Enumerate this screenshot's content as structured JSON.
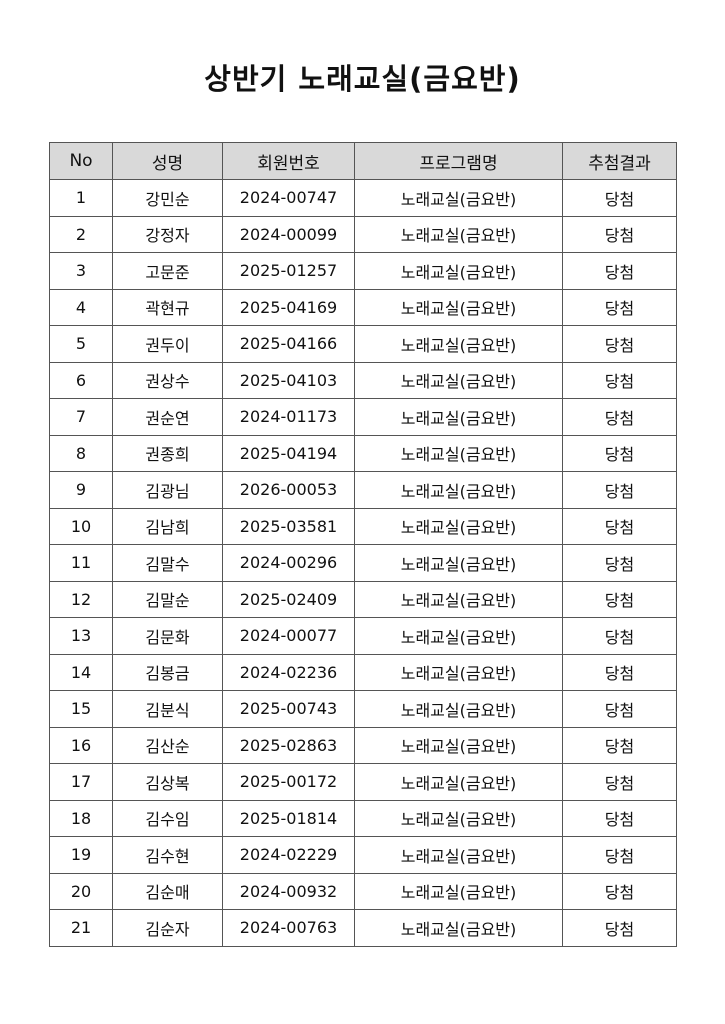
{
  "title": "상반기 노래교실(금요반)",
  "table": {
    "headers": [
      "No",
      "성명",
      "회원번호",
      "프로그램명",
      "추첨결과"
    ],
    "rows": [
      [
        "1",
        "강민순",
        "2024-00747",
        "노래교실(금요반)",
        "당첨"
      ],
      [
        "2",
        "강정자",
        "2024-00099",
        "노래교실(금요반)",
        "당첨"
      ],
      [
        "3",
        "고문준",
        "2025-01257",
        "노래교실(금요반)",
        "당첨"
      ],
      [
        "4",
        "곽현규",
        "2025-04169",
        "노래교실(금요반)",
        "당첨"
      ],
      [
        "5",
        "권두이",
        "2025-04166",
        "노래교실(금요반)",
        "당첨"
      ],
      [
        "6",
        "권상수",
        "2025-04103",
        "노래교실(금요반)",
        "당첨"
      ],
      [
        "7",
        "권순연",
        "2024-01173",
        "노래교실(금요반)",
        "당첨"
      ],
      [
        "8",
        "권종희",
        "2025-04194",
        "노래교실(금요반)",
        "당첨"
      ],
      [
        "9",
        "김광님",
        "2026-00053",
        "노래교실(금요반)",
        "당첨"
      ],
      [
        "10",
        "김남희",
        "2025-03581",
        "노래교실(금요반)",
        "당첨"
      ],
      [
        "11",
        "김말수",
        "2024-00296",
        "노래교실(금요반)",
        "당첨"
      ],
      [
        "12",
        "김말순",
        "2025-02409",
        "노래교실(금요반)",
        "당첨"
      ],
      [
        "13",
        "김문화",
        "2024-00077",
        "노래교실(금요반)",
        "당첨"
      ],
      [
        "14",
        "김봉금",
        "2024-02236",
        "노래교실(금요반)",
        "당첨"
      ],
      [
        "15",
        "김분식",
        "2025-00743",
        "노래교실(금요반)",
        "당첨"
      ],
      [
        "16",
        "김산순",
        "2025-02863",
        "노래교실(금요반)",
        "당첨"
      ],
      [
        "17",
        "김상복",
        "2025-00172",
        "노래교실(금요반)",
        "당첨"
      ],
      [
        "18",
        "김수임",
        "2025-01814",
        "노래교실(금요반)",
        "당첨"
      ],
      [
        "19",
        "김수현",
        "2024-02229",
        "노래교실(금요반)",
        "당첨"
      ],
      [
        "20",
        "김순매",
        "2024-00932",
        "노래교실(금요반)",
        "당첨"
      ],
      [
        "21",
        "김순자",
        "2024-00763",
        "노래교실(금요반)",
        "당첨"
      ]
    ]
  },
  "colors": {
    "header_bg": "#d9d9d9",
    "border": "#555555"
  }
}
